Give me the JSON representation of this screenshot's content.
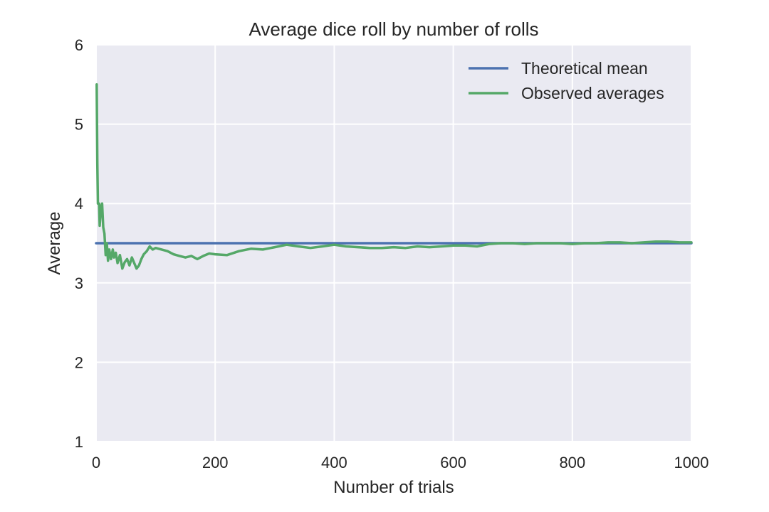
{
  "chart_data": {
    "type": "line",
    "title": "Average dice roll by number of rolls",
    "xlabel": "Number of trials",
    "ylabel": "Average",
    "xlim": [
      0,
      1000
    ],
    "ylim": [
      1,
      6
    ],
    "x_ticks": [
      0,
      200,
      400,
      600,
      800,
      1000
    ],
    "x_tick_labels": [
      "0",
      "200",
      "400",
      "600",
      "800",
      "1000"
    ],
    "y_ticks": [
      1,
      2,
      3,
      4,
      5,
      6
    ],
    "y_tick_labels": [
      "1",
      "2",
      "3",
      "4",
      "5",
      "6"
    ],
    "grid": true,
    "legend_position": "top-right",
    "series": [
      {
        "name": "Theoretical mean",
        "color": "#4c72b0",
        "x": [
          0,
          1000
        ],
        "y": [
          3.5,
          3.5
        ]
      },
      {
        "name": "Observed averages",
        "color": "#55a868",
        "x": [
          1,
          2,
          3,
          4,
          5,
          6,
          8,
          10,
          12,
          14,
          16,
          18,
          20,
          22,
          25,
          28,
          30,
          33,
          36,
          40,
          44,
          48,
          52,
          56,
          60,
          64,
          68,
          72,
          76,
          80,
          85,
          90,
          95,
          100,
          110,
          120,
          130,
          140,
          150,
          160,
          170,
          180,
          190,
          200,
          220,
          240,
          260,
          280,
          300,
          320,
          340,
          360,
          380,
          400,
          420,
          440,
          460,
          480,
          500,
          520,
          540,
          560,
          580,
          600,
          620,
          640,
          660,
          680,
          700,
          720,
          740,
          760,
          780,
          800,
          820,
          840,
          860,
          880,
          900,
          920,
          940,
          960,
          980,
          1000
        ],
        "y": [
          5.5,
          4.5,
          4.0,
          4.0,
          4.0,
          3.72,
          3.95,
          4.0,
          3.7,
          3.62,
          3.35,
          3.5,
          3.28,
          3.42,
          3.3,
          3.42,
          3.32,
          3.38,
          3.25,
          3.35,
          3.18,
          3.26,
          3.3,
          3.22,
          3.32,
          3.25,
          3.18,
          3.22,
          3.3,
          3.36,
          3.4,
          3.46,
          3.42,
          3.44,
          3.42,
          3.4,
          3.36,
          3.34,
          3.32,
          3.34,
          3.3,
          3.34,
          3.37,
          3.36,
          3.35,
          3.4,
          3.43,
          3.42,
          3.45,
          3.48,
          3.46,
          3.44,
          3.46,
          3.48,
          3.46,
          3.45,
          3.44,
          3.44,
          3.45,
          3.44,
          3.46,
          3.45,
          3.46,
          3.47,
          3.47,
          3.46,
          3.49,
          3.5,
          3.5,
          3.49,
          3.5,
          3.5,
          3.5,
          3.49,
          3.5,
          3.5,
          3.51,
          3.51,
          3.5,
          3.51,
          3.52,
          3.52,
          3.51,
          3.51
        ]
      }
    ]
  }
}
